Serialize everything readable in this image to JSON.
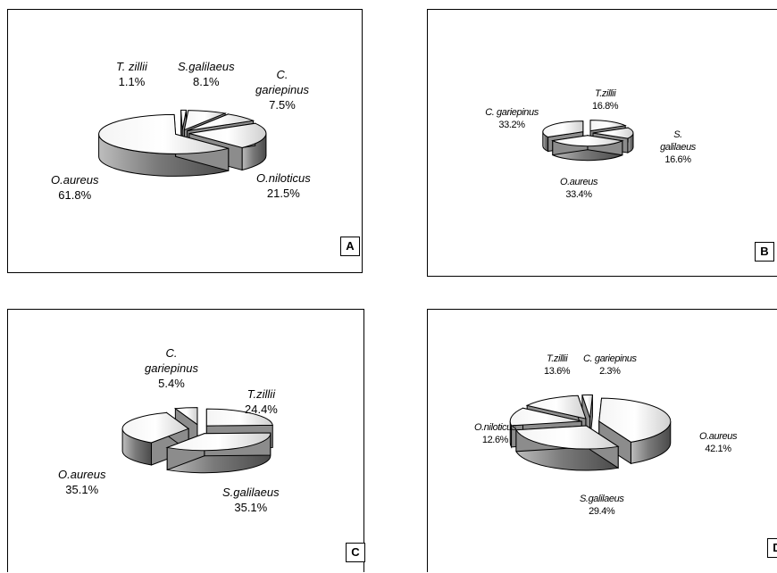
{
  "chart_data": [
    {
      "type": "pie",
      "panel_label": "A",
      "slices": [
        {
          "name": "T. zillii",
          "value": 1.1,
          "value_label": "1.1%"
        },
        {
          "name": "S.galilaeus",
          "value": 8.1,
          "value_label": "8.1%"
        },
        {
          "name": "C. gariepinus",
          "value": 7.5,
          "value_label": "7.5%"
        },
        {
          "name": "O.niloticus",
          "value": 21.5,
          "value_label": "21.5%"
        },
        {
          "name": "O.aureus",
          "value": 61.8,
          "value_label": "61.8%"
        }
      ]
    },
    {
      "type": "pie",
      "panel_label": "B",
      "slices": [
        {
          "name": "T.zillii",
          "value": 16.8,
          "value_label": "16.8%"
        },
        {
          "name": "S. galilaeus",
          "value": 16.6,
          "value_label": "16.6%"
        },
        {
          "name": "O.aureus",
          "value": 33.4,
          "value_label": "33.4%"
        },
        {
          "name": "C. gariepinus",
          "value": 33.2,
          "value_label": "33.2%"
        }
      ]
    },
    {
      "type": "pie",
      "panel_label": "C",
      "slices": [
        {
          "name": "T.zillii",
          "value": 24.4,
          "value_label": "24.4%"
        },
        {
          "name": "S.galilaeus",
          "value": 35.1,
          "value_label": "35.1%"
        },
        {
          "name": "O.aureus",
          "value": 35.1,
          "value_label": "35.1%"
        },
        {
          "name": "C. gariepinus",
          "value": 5.4,
          "value_label": "5.4%"
        }
      ]
    },
    {
      "type": "pie",
      "panel_label": "D",
      "slices": [
        {
          "name": "O.aureus",
          "value": 42.1,
          "value_label": "42.1%"
        },
        {
          "name": "S.galilaeus",
          "value": 29.4,
          "value_label": "29.4%"
        },
        {
          "name": "O.niloticus",
          "value": 12.6,
          "value_label": "12.6%"
        },
        {
          "name": "T.zillii",
          "value": 13.6,
          "value_label": "13.6%"
        },
        {
          "name": "C. gariepinus",
          "value": 2.3,
          "value_label": "2.3%"
        }
      ]
    }
  ]
}
